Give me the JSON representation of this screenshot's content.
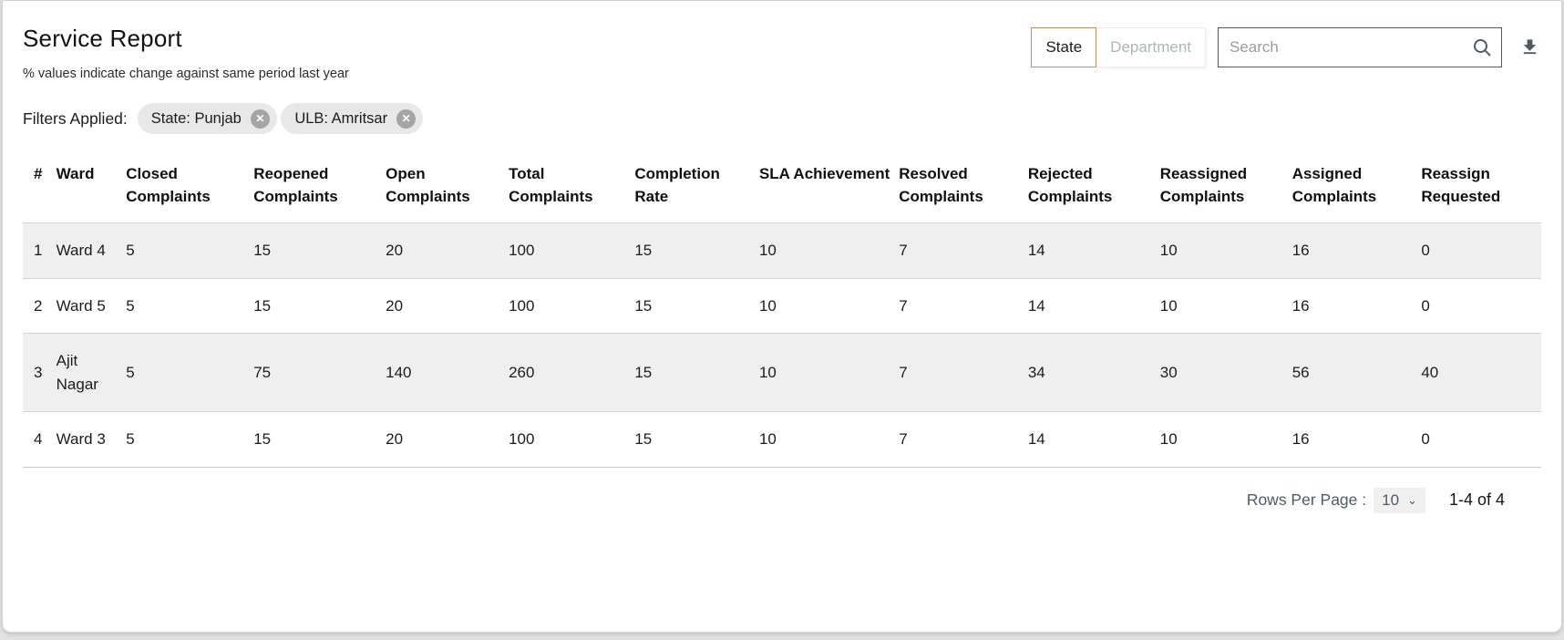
{
  "page": {
    "title": "Service Report",
    "subtitle": "% values indicate change against same period last year"
  },
  "toggle": {
    "options": [
      {
        "label": "State",
        "selected": true
      },
      {
        "label": "Department",
        "selected": false
      }
    ]
  },
  "search": {
    "placeholder": "Search"
  },
  "filters": {
    "label": "Filters Applied:",
    "chips": [
      {
        "label": "State: Punjab"
      },
      {
        "label": "ULB: Amritsar"
      }
    ],
    "chip_close_glyph": "✕"
  },
  "table": {
    "columns": [
      "#",
      "Ward",
      "Closed Complaints",
      "Reopened Complaints",
      "Open Complaints",
      "Total Complaints",
      "Completion Rate",
      "SLA Achievement",
      "Resolved Complaints",
      "Rejected Complaints",
      "Reassigned Complaints",
      "Assigned Complaints",
      "Reassign Requested"
    ],
    "column_widths_pct": [
      2.2,
      4.6,
      8.4,
      8.7,
      8.1,
      8.3,
      8.2,
      9.2,
      8.5,
      8.7,
      8.7,
      8.5,
      7.9
    ],
    "rows": [
      {
        "index": "1",
        "ward": "Ward 4",
        "values": [
          "5",
          "15",
          "20",
          "100",
          "15",
          "10",
          "7",
          "14",
          "10",
          "16",
          "0"
        ]
      },
      {
        "index": "2",
        "ward": "Ward 5",
        "values": [
          "5",
          "15",
          "20",
          "100",
          "15",
          "10",
          "7",
          "14",
          "10",
          "16",
          "0"
        ]
      },
      {
        "index": "3",
        "ward": "Ajit Nagar",
        "values": [
          "5",
          "75",
          "140",
          "260",
          "15",
          "10",
          "7",
          "34",
          "30",
          "56",
          "40"
        ]
      },
      {
        "index": "4",
        "ward": "Ward 3",
        "values": [
          "5",
          "15",
          "20",
          "100",
          "15",
          "10",
          "7",
          "14",
          "10",
          "16",
          "0"
        ]
      }
    ]
  },
  "pagination": {
    "rows_per_page_label": "Rows Per Page :",
    "rows_per_page_value": "10",
    "chevron_glyph": "⌄",
    "range_label": "1-4 of 4"
  },
  "colors": {
    "accent_selected_border": "#cc8c60",
    "row_stripe": "#efefef",
    "chip_bg": "#e8e8e8",
    "muted_text": "#505A5F",
    "border_line": "#d6d5d4"
  }
}
